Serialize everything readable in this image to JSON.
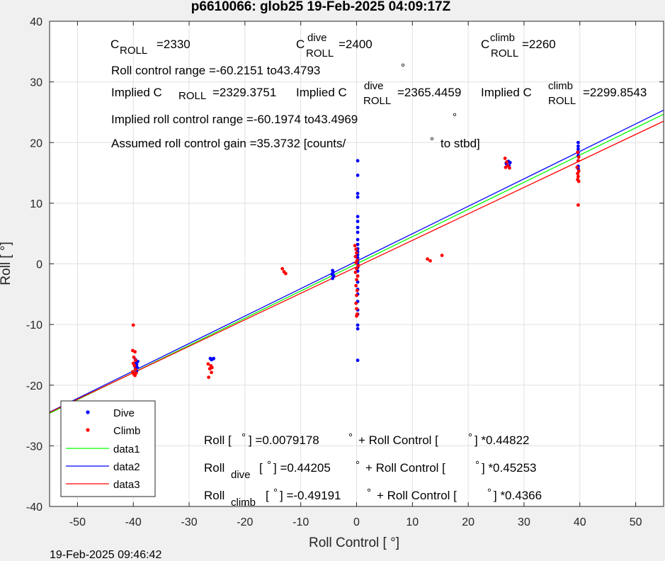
{
  "chart_data": {
    "type": "scatter",
    "title": "p6610066: glob25 19-Feb-2025 04:09:17Z",
    "xlabel": "Roll Control [   °]",
    "ylabel": "Roll [  °]",
    "xlim": [
      -55,
      55
    ],
    "ylim": [
      -40,
      40
    ],
    "xticks": [
      -50,
      -40,
      -30,
      -20,
      -10,
      0,
      10,
      20,
      30,
      40,
      50
    ],
    "yticks": [
      -40,
      -30,
      -20,
      -10,
      0,
      10,
      20,
      30,
      40
    ],
    "grid": true,
    "legend_position": "bottom-left",
    "legend": [
      "Dive",
      "Climb",
      "data1",
      "data2",
      "data3"
    ],
    "colors": {
      "dive": "#0000ff",
      "climb": "#ff0000",
      "data1": "#00ff00",
      "data2": "#0000ff",
      "data3": "#ff0000"
    },
    "lines": [
      {
        "name": "data1",
        "color": "#00ff00",
        "intercept": 0.0079178,
        "slope": 0.44822
      },
      {
        "name": "data2",
        "color": "#0000ff",
        "intercept": 0.44205,
        "slope": 0.45253
      },
      {
        "name": "data3",
        "color": "#ff0000",
        "intercept": -0.49191,
        "slope": 0.4366
      }
    ],
    "series": [
      {
        "name": "Dive",
        "color": "#0000ff",
        "points": [
          [
            -39.6,
            -15.8
          ],
          [
            -39.5,
            -16.3
          ],
          [
            -39.4,
            -16.6
          ],
          [
            -39.6,
            -16.9
          ],
          [
            -39.3,
            -17.1
          ],
          [
            -39.5,
            -17.4
          ],
          [
            -39.4,
            -17.7
          ],
          [
            -39.6,
            -17.2
          ],
          [
            -39.2,
            -16.1
          ],
          [
            -26.2,
            -15.6
          ],
          [
            -26.0,
            -15.8
          ],
          [
            -25.6,
            -15.6
          ],
          [
            -25.8,
            -15.7
          ],
          [
            -4.3,
            -1.1
          ],
          [
            -4.2,
            -1.4
          ],
          [
            -4.4,
            -1.7
          ],
          [
            -4.1,
            -2.0
          ],
          [
            -4.3,
            -2.4
          ],
          [
            0.2,
            17.0
          ],
          [
            0.2,
            14.6
          ],
          [
            0.2,
            11.6
          ],
          [
            0.2,
            11.0
          ],
          [
            0.2,
            7.8
          ],
          [
            0.2,
            7.0
          ],
          [
            0.2,
            6.0
          ],
          [
            0.2,
            5.2
          ],
          [
            0.2,
            4.0
          ],
          [
            0.2,
            3.2
          ],
          [
            0.2,
            2.5
          ],
          [
            0.2,
            2.0
          ],
          [
            0.2,
            1.5
          ],
          [
            0.2,
            1.0
          ],
          [
            0.2,
            0.5
          ],
          [
            0.2,
            0.0
          ],
          [
            0.2,
            -0.6
          ],
          [
            0.2,
            -1.2
          ],
          [
            0.2,
            -2.0
          ],
          [
            0.2,
            -3.0
          ],
          [
            0.2,
            -4.2
          ],
          [
            0.2,
            -5.0
          ],
          [
            0.2,
            -6.2
          ],
          [
            0.2,
            -7.6
          ],
          [
            0.2,
            -8.3
          ],
          [
            0.2,
            -10.1
          ],
          [
            0.2,
            -10.7
          ],
          [
            0.2,
            -15.9
          ],
          [
            26.8,
            16.6
          ],
          [
            27.2,
            16.9
          ],
          [
            27.5,
            16.7
          ],
          [
            26.9,
            16.4
          ],
          [
            27.3,
            16.2
          ],
          [
            39.7,
            20.0
          ],
          [
            39.7,
            19.4
          ],
          [
            39.7,
            18.9
          ],
          [
            39.7,
            18.3
          ],
          [
            39.7,
            17.8
          ],
          [
            39.7,
            16.1
          ],
          [
            39.7,
            15.7
          ]
        ]
      },
      {
        "name": "Climb",
        "color": "#ff0000",
        "points": [
          [
            -40.0,
            -10.1
          ],
          [
            -40.1,
            -14.3
          ],
          [
            -39.7,
            -14.5
          ],
          [
            -39.9,
            -15.4
          ],
          [
            -39.6,
            -15.9
          ],
          [
            -40.0,
            -16.4
          ],
          [
            -39.8,
            -16.8
          ],
          [
            -39.6,
            -17.4
          ],
          [
            -40.1,
            -17.8
          ],
          [
            -39.9,
            -18.2
          ],
          [
            -39.5,
            -18.0
          ],
          [
            -39.7,
            -18.4
          ],
          [
            -26.6,
            -16.5
          ],
          [
            -26.1,
            -16.8
          ],
          [
            -25.9,
            -17.1
          ],
          [
            -26.3,
            -17.3
          ],
          [
            -26.0,
            -17.9
          ],
          [
            -26.5,
            -18.7
          ],
          [
            -13.3,
            -0.8
          ],
          [
            -13.0,
            -1.3
          ],
          [
            -12.7,
            -1.6
          ],
          [
            -0.3,
            3.0
          ],
          [
            -0.1,
            2.4
          ],
          [
            0.0,
            1.8
          ],
          [
            -0.2,
            1.2
          ],
          [
            0.1,
            0.6
          ],
          [
            -0.1,
            0.2
          ],
          [
            0.3,
            -0.3
          ],
          [
            0.0,
            -0.8
          ],
          [
            -0.2,
            -1.4
          ],
          [
            0.2,
            -2.0
          ],
          [
            0.0,
            -2.6
          ],
          [
            -0.1,
            -3.6
          ],
          [
            0.1,
            -4.4
          ],
          [
            0.0,
            -5.2
          ],
          [
            -0.1,
            -6.5
          ],
          [
            0.0,
            -7.4
          ],
          [
            0.1,
            -8.3
          ],
          [
            0.0,
            -8.6
          ],
          [
            12.7,
            0.8
          ],
          [
            13.2,
            0.5
          ],
          [
            15.3,
            1.4
          ],
          [
            26.6,
            17.4
          ],
          [
            26.9,
            16.8
          ],
          [
            27.1,
            16.2
          ],
          [
            27.4,
            15.8
          ],
          [
            26.7,
            15.9
          ],
          [
            39.6,
            18.4
          ],
          [
            39.8,
            17.6
          ],
          [
            39.7,
            17.0
          ],
          [
            39.5,
            15.9
          ],
          [
            39.8,
            15.3
          ],
          [
            39.6,
            14.9
          ],
          [
            39.7,
            14.4
          ],
          [
            39.6,
            13.9
          ],
          [
            39.8,
            13.6
          ],
          [
            39.7,
            9.7
          ]
        ]
      }
    ]
  },
  "annotations": {
    "c_roll_prefix": "C",
    "c_roll_sub": "ROLL",
    "c_roll_value": "=2330",
    "c_dive_prefix": "C",
    "c_dive_sup": "dive",
    "c_dive_sub": "ROLL",
    "c_dive_value": "=2400",
    "c_climb_prefix": "C",
    "c_climb_sup": "climb",
    "c_climb_sub": "ROLL",
    "c_climb_value": "=2260",
    "roll_range": "Roll control range =-60.2151 to43.4793",
    "implied_c_prefix": "Implied C",
    "implied_c_sub": "ROLL",
    "implied_c_value": "=2329.3751",
    "implied_dive_prefix": "Implied C",
    "implied_dive_sup": "dive",
    "implied_dive_sub": "ROLL",
    "implied_dive_value": "=2365.4459",
    "implied_climb_prefix": "Implied C",
    "implied_climb_sup": "climb",
    "implied_climb_sub": "ROLL",
    "implied_climb_value": "=2299.8543",
    "implied_range": "Implied roll control range =-60.1974 to43.4969",
    "gain_text": "Assumed roll control gain =35.3732 [counts/",
    "gain_suffix": "to stbd]",
    "degree_symbol": "°",
    "fit_all_a": "Roll [",
    "fit_all_b": "] =0.0079178",
    "fit_all_c": "+ Roll Control [",
    "fit_all_d": "] *0.44822",
    "fit_dive_prefix": "Roll",
    "fit_dive_sub": "dive",
    "fit_dive_b": "[",
    "fit_dive_c": "] =0.44205",
    "fit_dive_d": "+ Roll Control [",
    "fit_dive_e": "] *0.45253",
    "fit_climb_prefix": "Roll",
    "fit_climb_sub": "climb",
    "fit_climb_b": "[",
    "fit_climb_c": "] =-0.49191",
    "fit_climb_d": "+ Roll Control [",
    "fit_climb_e": "] *0.4366"
  },
  "timestamp": "19-Feb-2025 09:46:42"
}
